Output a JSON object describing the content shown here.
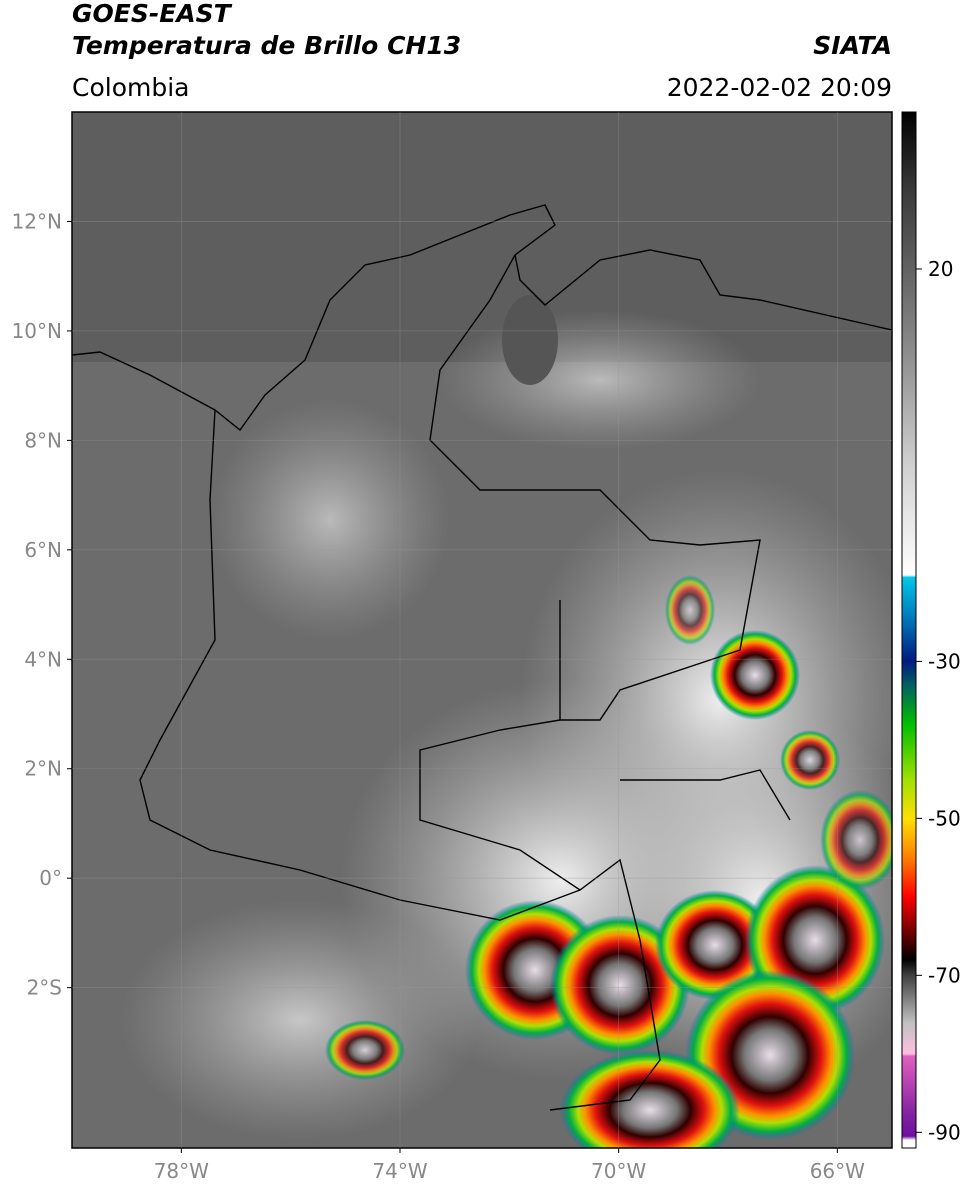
{
  "header": {
    "title": "GOES-EAST",
    "subtitle": "Temperatura de Brillo CH13",
    "source": "SIATA",
    "region": "Colombia",
    "datetime": "2022-02-02 20:09"
  },
  "map": {
    "xlim": [
      -80,
      -65
    ],
    "ylim": [
      -4.93,
      14
    ],
    "xticks": [
      {
        "value": -78,
        "label": "78°W"
      },
      {
        "value": -74,
        "label": "74°W"
      },
      {
        "value": -70,
        "label": "70°W"
      },
      {
        "value": -66,
        "label": "66°W"
      }
    ],
    "yticks": [
      {
        "value": 12,
        "label": "12°N"
      },
      {
        "value": 10,
        "label": "10°N"
      },
      {
        "value": 8,
        "label": "8°N"
      },
      {
        "value": 6,
        "label": "6°N"
      },
      {
        "value": 4,
        "label": "4°N"
      },
      {
        "value": 2,
        "label": "2°N"
      },
      {
        "value": 0,
        "label": "0°"
      },
      {
        "value": -2,
        "label": "2°S"
      }
    ],
    "grid": true
  },
  "colorbar": {
    "lim": [
      -92,
      40
    ],
    "ticks": [
      20,
      -30,
      -50,
      -70,
      -90
    ],
    "colormap": [
      {
        "value": 40,
        "color": "#000000"
      },
      {
        "value": 30,
        "color": "#3a3a3a"
      },
      {
        "value": 10,
        "color": "#8a8a8a"
      },
      {
        "value": -5,
        "color": "#d0d0d0"
      },
      {
        "value": -19,
        "color": "#ffffff"
      },
      {
        "value": -19.3,
        "color": "#00c8e8"
      },
      {
        "value": -24,
        "color": "#0080c0"
      },
      {
        "value": -30,
        "color": "#001a80"
      },
      {
        "value": -33,
        "color": "#006060"
      },
      {
        "value": -38,
        "color": "#00c000"
      },
      {
        "value": -45,
        "color": "#a0e000"
      },
      {
        "value": -50,
        "color": "#ffe000"
      },
      {
        "value": -55,
        "color": "#ff8000"
      },
      {
        "value": -60,
        "color": "#ff0000"
      },
      {
        "value": -65,
        "color": "#600000"
      },
      {
        "value": -68,
        "color": "#000000"
      },
      {
        "value": -70,
        "color": "#404040"
      },
      {
        "value": -76,
        "color": "#c0c0c0"
      },
      {
        "value": -80,
        "color": "#ffc0e0"
      },
      {
        "value": -80.3,
        "color": "#e060c0"
      },
      {
        "value": -88,
        "color": "#8020a0"
      },
      {
        "value": -90.5,
        "color": "#7010a0"
      },
      {
        "value": -91,
        "color": "#ffffff"
      },
      {
        "value": -92,
        "color": "#ffffff"
      }
    ]
  }
}
